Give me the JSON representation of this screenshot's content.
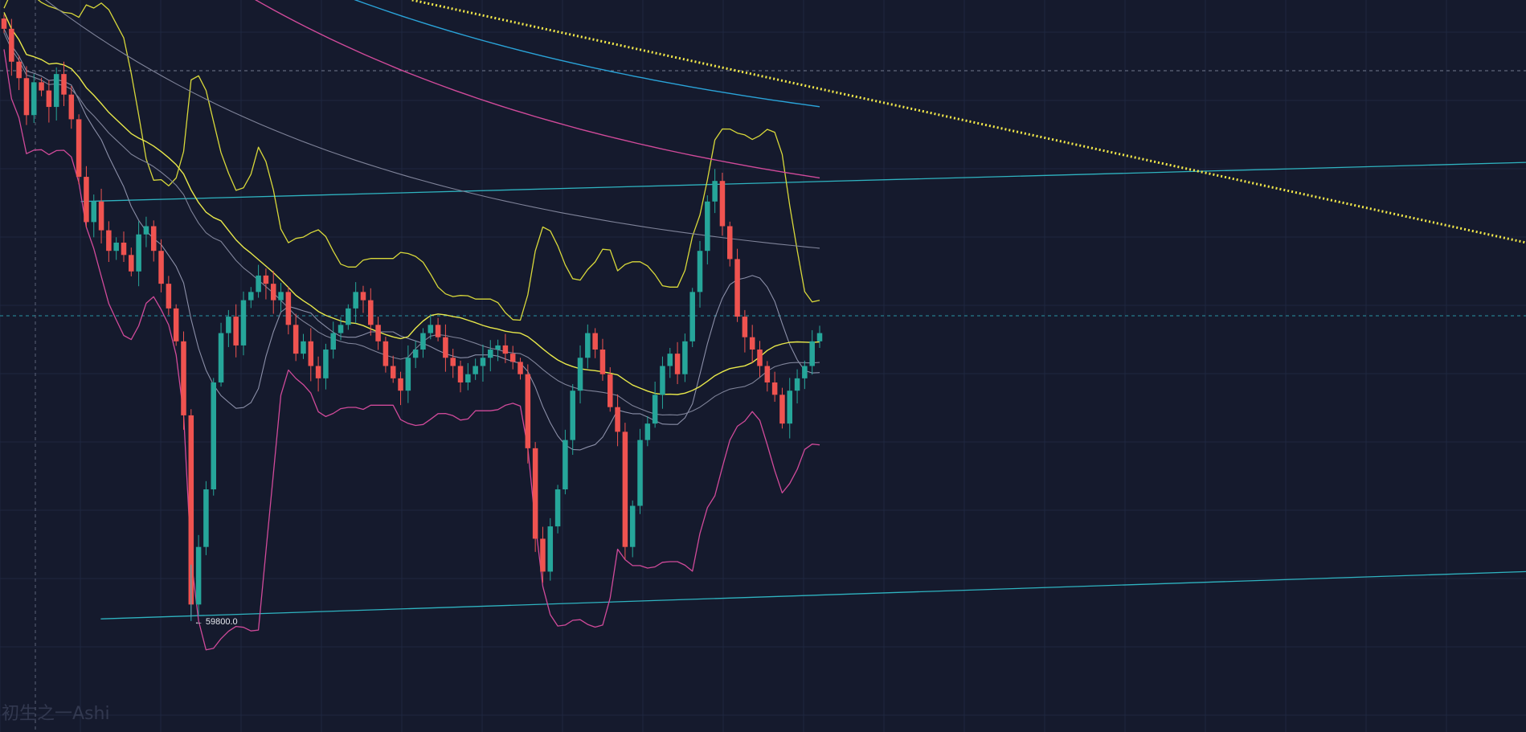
{
  "chart_data": {
    "type": "candlestick",
    "title": "",
    "xlabel": "",
    "ylabel": "",
    "ylim": [
      59530,
      61310
    ],
    "grid": true,
    "colors": {
      "background": "#151a2d",
      "grid": "#1f2740",
      "up": "#26a69a",
      "down": "#ef5350",
      "bollinger_upper": "#d8d83a",
      "bollinger_mid": "#8b8fa8",
      "bollinger_lower": "#d04a9a",
      "ma_yellow": "#e8e84a",
      "ma_gray": "#7f8399",
      "ma_pink": "#d04a9a",
      "ma_blue": "#2aa3d8",
      "trendline": "#2fb3c0",
      "dotted_trendline": "#f2e84a",
      "crosshair": "#8a93a8"
    },
    "price_marker": {
      "label": "59800.0",
      "value": 59800.0
    },
    "watermark": "初生之一Ashi",
    "anchors": {
      "y_top": {
        "price": 61310,
        "pct": 0.0
      },
      "y_bottom": {
        "price": 59530,
        "pct": 1.0
      },
      "dashed_h1_price": 61138,
      "dashed_h2_price": 60542
    },
    "closes": [
      61240,
      61160,
      61120,
      61030,
      61110,
      61090,
      61050,
      61130,
      61080,
      61020,
      60880,
      60770,
      60820,
      60750,
      60700,
      60720,
      60690,
      60650,
      60740,
      60760,
      60700,
      60620,
      60560,
      60480,
      60300,
      59840,
      59980,
      60120,
      60380,
      60500,
      60540,
      60470,
      60580,
      60600,
      60640,
      60620,
      60580,
      60600,
      60520,
      60450,
      60480,
      60420,
      60390,
      60460,
      60500,
      60520,
      60560,
      60600,
      60580,
      60520,
      60480,
      60420,
      60390,
      60360,
      60440,
      60460,
      60500,
      60520,
      60490,
      60440,
      60420,
      60380,
      60400,
      60420,
      60440,
      60460,
      60470,
      60450,
      60430,
      60400,
      60220,
      60000,
      59920,
      60030,
      60120,
      60240,
      60360,
      60440,
      60500,
      60460,
      60400,
      60320,
      60260,
      59980,
      60080,
      60240,
      60280,
      60350,
      60420,
      60450,
      60400,
      60480,
      60600,
      60700,
      60820,
      60870,
      60760,
      60680,
      60540,
      60490,
      60460,
      60420,
      60380,
      60350,
      60280,
      60360,
      60390,
      60420,
      60480,
      60500
    ],
    "trendlines": [
      {
        "name": "upper-channel",
        "from": [
          0.053,
          60820
        ],
        "to": [
          1.0,
          60915
        ]
      },
      {
        "name": "lower-channel",
        "from": [
          0.066,
          59805
        ],
        "to": [
          1.0,
          59920
        ]
      },
      {
        "name": "dotted-resistance",
        "from": [
          0.27,
          61310
        ],
        "to": [
          1.0,
          60720
        ]
      }
    ]
  }
}
